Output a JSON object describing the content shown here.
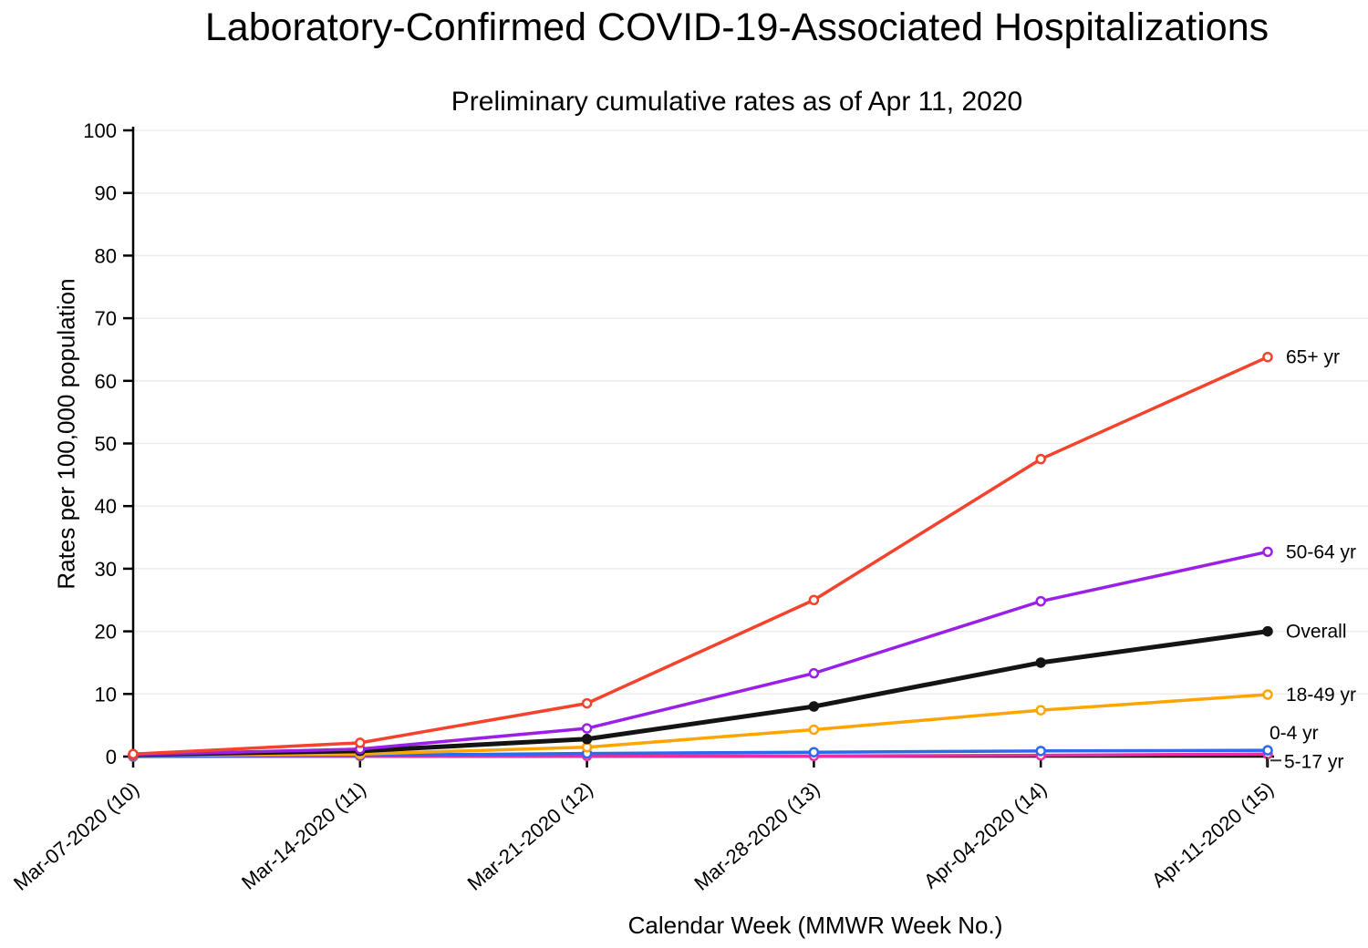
{
  "chart_data": {
    "type": "line",
    "title": "Laboratory-Confirmed COVID-19-Associated Hospitalizations",
    "subtitle": "Preliminary cumulative rates as of Apr 11, 2020",
    "xlabel": "Calendar Week (MMWR Week No.)",
    "ylabel": "Rates per 100,000 population",
    "categories": [
      "Mar-07-2020 (10)",
      "Mar-14-2020 (11)",
      "Mar-21-2020 (12)",
      "Mar-28-2020 (13)",
      "Apr-04-2020 (14)",
      "Apr-11-2020 (15)"
    ],
    "ylim": [
      0,
      100
    ],
    "ytick_step": 10,
    "grid": "horizontal",
    "legend_position": "labels-at-line-end",
    "axis_color": "#000000",
    "gridline_color": "#ededed",
    "series": [
      {
        "name": "65+ yr",
        "color": "#f4432c",
        "values": [
          0.4,
          2.2,
          8.5,
          25.0,
          47.5,
          63.8
        ],
        "label_placement": "right",
        "emphasis": false
      },
      {
        "name": "50-64 yr",
        "color": "#9b20e6",
        "values": [
          0.3,
          1.2,
          4.5,
          13.3,
          24.8,
          32.7
        ],
        "label_placement": "right",
        "emphasis": false
      },
      {
        "name": "Overall",
        "color": "#141414",
        "values": [
          0.3,
          0.9,
          2.8,
          8.0,
          15.0,
          20.0
        ],
        "label_placement": "right",
        "emphasis": true
      },
      {
        "name": "18-49 yr",
        "color": "#ffa502",
        "values": [
          0.2,
          0.4,
          1.5,
          4.3,
          7.4,
          9.9
        ],
        "label_placement": "right",
        "emphasis": false
      },
      {
        "name": "0-4 yr",
        "color": "#2d69eb",
        "values": [
          0.1,
          0.2,
          0.5,
          0.7,
          0.9,
          1.0
        ],
        "label_placement": "above",
        "emphasis": false
      },
      {
        "name": "5-17 yr",
        "color": "#eb2da0",
        "values": [
          0.0,
          0.1,
          0.1,
          0.1,
          0.2,
          0.4
        ],
        "label_placement": "leader",
        "emphasis": false
      }
    ]
  }
}
